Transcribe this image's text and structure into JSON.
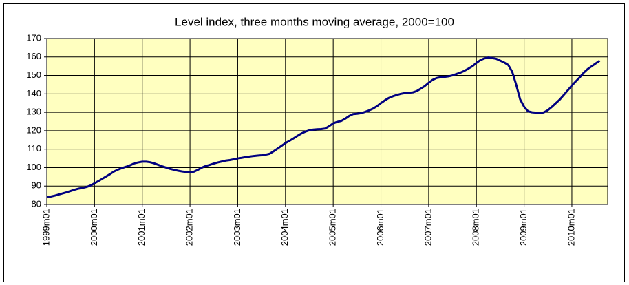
{
  "chart_data": {
    "type": "line",
    "title": "Level index, three months moving average, 2000=100",
    "categories": [
      "1999m01",
      null,
      null,
      null,
      null,
      null,
      null,
      null,
      null,
      null,
      null,
      null,
      "2000m01",
      null,
      null,
      null,
      null,
      null,
      null,
      null,
      null,
      null,
      null,
      null,
      "2001m01",
      null,
      null,
      null,
      null,
      null,
      null,
      null,
      null,
      null,
      null,
      null,
      "2002m01",
      null,
      null,
      null,
      null,
      null,
      null,
      null,
      null,
      null,
      null,
      null,
      "2003m01",
      null,
      null,
      null,
      null,
      null,
      null,
      null,
      null,
      null,
      null,
      null,
      "2004m01",
      null,
      null,
      null,
      null,
      null,
      null,
      null,
      null,
      null,
      null,
      null,
      "2005m01",
      null,
      null,
      null,
      null,
      null,
      null,
      null,
      null,
      null,
      null,
      null,
      "2006m01",
      null,
      null,
      null,
      null,
      null,
      null,
      null,
      null,
      null,
      null,
      null,
      "2007m01",
      null,
      null,
      null,
      null,
      null,
      null,
      null,
      null,
      null,
      null,
      null,
      "2008m01",
      null,
      null,
      null,
      null,
      null,
      null,
      null,
      null,
      null,
      null,
      null,
      "2009m01",
      null,
      null,
      null,
      null,
      null,
      null,
      null,
      null,
      null,
      null,
      null,
      "2010m01",
      null,
      null,
      null,
      null,
      null,
      null,
      null
    ],
    "values": [
      84,
      84.3,
      84.8,
      85.4,
      86,
      86.6,
      87.3,
      88,
      88.6,
      89,
      89.5,
      90.3,
      91.5,
      92.7,
      94,
      95.3,
      96.6,
      98,
      99,
      99.8,
      100.5,
      101.3,
      102.3,
      102.8,
      103.2,
      103.2,
      102.9,
      102.3,
      101.5,
      100.7,
      100,
      99.3,
      98.8,
      98.3,
      97.9,
      97.6,
      97.5,
      97.8,
      98.8,
      100,
      100.9,
      101.5,
      102.2,
      102.8,
      103.3,
      103.8,
      104.1,
      104.5,
      105,
      105.3,
      105.7,
      106,
      106.3,
      106.5,
      106.7,
      107,
      107.5,
      108.8,
      110.3,
      111.8,
      113.3,
      114.5,
      115.8,
      117.2,
      118.5,
      119.5,
      120.2,
      120.6,
      120.8,
      120.9,
      121.2,
      122.5,
      124,
      124.8,
      125.3,
      126.5,
      128,
      129,
      129.2,
      129.5,
      130.2,
      131,
      132,
      133.3,
      135,
      136.5,
      137.8,
      138.7,
      139.4,
      140,
      140.4,
      140.6,
      140.8,
      141.5,
      142.8,
      144.2,
      146,
      147.6,
      148.6,
      149,
      149.2,
      149.5,
      150,
      150.8,
      151.5,
      152.5,
      153.7,
      155,
      156.8,
      158.3,
      159.2,
      159.7,
      159.4,
      159,
      158,
      157,
      155.7,
      152,
      145,
      137,
      133,
      130.5,
      130,
      129.8,
      129.5,
      130,
      131.2,
      133,
      135,
      137,
      139.5,
      142,
      144.5,
      146.8,
      149,
      151.5,
      153.5,
      155,
      156.5,
      158
    ],
    "color": "#000080",
    "ylim": [
      80,
      170
    ],
    "yticks": [
      80,
      90,
      100,
      110,
      120,
      130,
      140,
      150,
      160,
      170
    ],
    "grid": true
  }
}
